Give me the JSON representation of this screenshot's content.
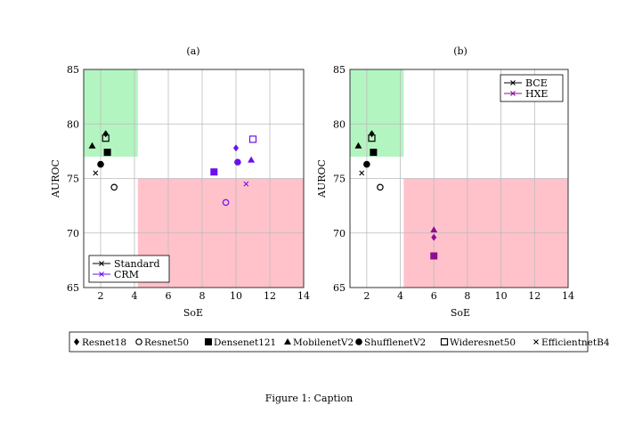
{
  "chart_data": [
    {
      "type": "scatter",
      "title": "(a)",
      "xlabel": "SoE",
      "ylabel": "AUROC",
      "xlim": [
        1,
        14
      ],
      "ylim": [
        65,
        85
      ],
      "xticks": [
        "2",
        "4",
        "6",
        "8",
        "10",
        "12",
        "14"
      ],
      "yticks": [
        "65",
        "70",
        "75",
        "80",
        "85"
      ],
      "grid": true,
      "legend_position": "bottom-left",
      "regions": [
        {
          "color": "#b3f5c0",
          "x": [
            1,
            4.2
          ],
          "y": [
            77,
            85
          ]
        },
        {
          "color": "#ffc2cb",
          "x": [
            4.2,
            14
          ],
          "y": [
            65,
            75
          ]
        }
      ],
      "series": [
        {
          "name": "Standard",
          "color": "#000000",
          "points": [
            {
              "model": "Resnet18",
              "x": 2.3,
              "y": 79.1
            },
            {
              "model": "Resnet50",
              "x": 2.8,
              "y": 74.2
            },
            {
              "model": "Densenet121",
              "x": 2.4,
              "y": 77.4
            },
            {
              "model": "MobilenetV2",
              "x": 1.5,
              "y": 78.0
            },
            {
              "model": "ShufflenetV2",
              "x": 2.0,
              "y": 76.3
            },
            {
              "model": "Wideresnet50",
              "x": 2.3,
              "y": 78.7
            },
            {
              "model": "EfficientnetB4",
              "x": 1.7,
              "y": 75.5
            }
          ]
        },
        {
          "name": "CRM",
          "color": "#6a11ee",
          "points": [
            {
              "model": "Resnet18",
              "x": 10.0,
              "y": 77.8
            },
            {
              "model": "Resnet50",
              "x": 9.4,
              "y": 72.8
            },
            {
              "model": "Densenet121",
              "x": 8.7,
              "y": 75.6
            },
            {
              "model": "MobilenetV2",
              "x": 10.9,
              "y": 76.7
            },
            {
              "model": "ShufflenetV2",
              "x": 10.1,
              "y": 76.5
            },
            {
              "model": "Wideresnet50",
              "x": 11.0,
              "y": 78.6
            },
            {
              "model": "EfficientnetB4",
              "x": 10.6,
              "y": 74.5
            }
          ]
        }
      ]
    },
    {
      "type": "scatter",
      "title": "(b)",
      "xlabel": "SoE",
      "ylabel": "AUROC",
      "xlim": [
        1,
        14
      ],
      "ylim": [
        65,
        85
      ],
      "xticks": [
        "2",
        "4",
        "6",
        "8",
        "10",
        "12",
        "14"
      ],
      "yticks": [
        "65",
        "70",
        "75",
        "80",
        "85"
      ],
      "grid": true,
      "legend_position": "top-right",
      "regions": [
        {
          "color": "#b3f5c0",
          "x": [
            1,
            4.2
          ],
          "y": [
            77,
            85
          ]
        },
        {
          "color": "#ffc2cb",
          "x": [
            4.2,
            14
          ],
          "y": [
            65,
            75
          ]
        }
      ],
      "series": [
        {
          "name": "BCE",
          "color": "#000000",
          "points": [
            {
              "model": "Resnet18",
              "x": 2.3,
              "y": 79.1
            },
            {
              "model": "Resnet50",
              "x": 2.8,
              "y": 74.2
            },
            {
              "model": "Densenet121",
              "x": 2.4,
              "y": 77.4
            },
            {
              "model": "MobilenetV2",
              "x": 1.5,
              "y": 78.0
            },
            {
              "model": "ShufflenetV2",
              "x": 2.0,
              "y": 76.3
            },
            {
              "model": "Wideresnet50",
              "x": 2.3,
              "y": 78.7
            },
            {
              "model": "EfficientnetB4",
              "x": 1.7,
              "y": 75.5
            }
          ]
        },
        {
          "name": "HXE",
          "color": "#8e0f8e",
          "points": [
            {
              "model": "Resnet18",
              "x": 6.0,
              "y": 69.6
            },
            {
              "model": "Densenet121",
              "x": 6.0,
              "y": 67.9
            },
            {
              "model": "MobilenetV2",
              "x": 6.0,
              "y": 70.3
            }
          ]
        }
      ]
    }
  ],
  "model_legend": [
    {
      "label": "Resnet18",
      "marker": "diamond"
    },
    {
      "label": "Resnet50",
      "marker": "circle-open"
    },
    {
      "label": "Densenet121",
      "marker": "square"
    },
    {
      "label": "MobilenetV2",
      "marker": "triangle"
    },
    {
      "label": "ShufflenetV2",
      "marker": "circle"
    },
    {
      "label": "Wideresnet50",
      "marker": "square-open"
    },
    {
      "label": "EfficientnetB4",
      "marker": "cross"
    }
  ],
  "caption": "Figure 1: Caption"
}
